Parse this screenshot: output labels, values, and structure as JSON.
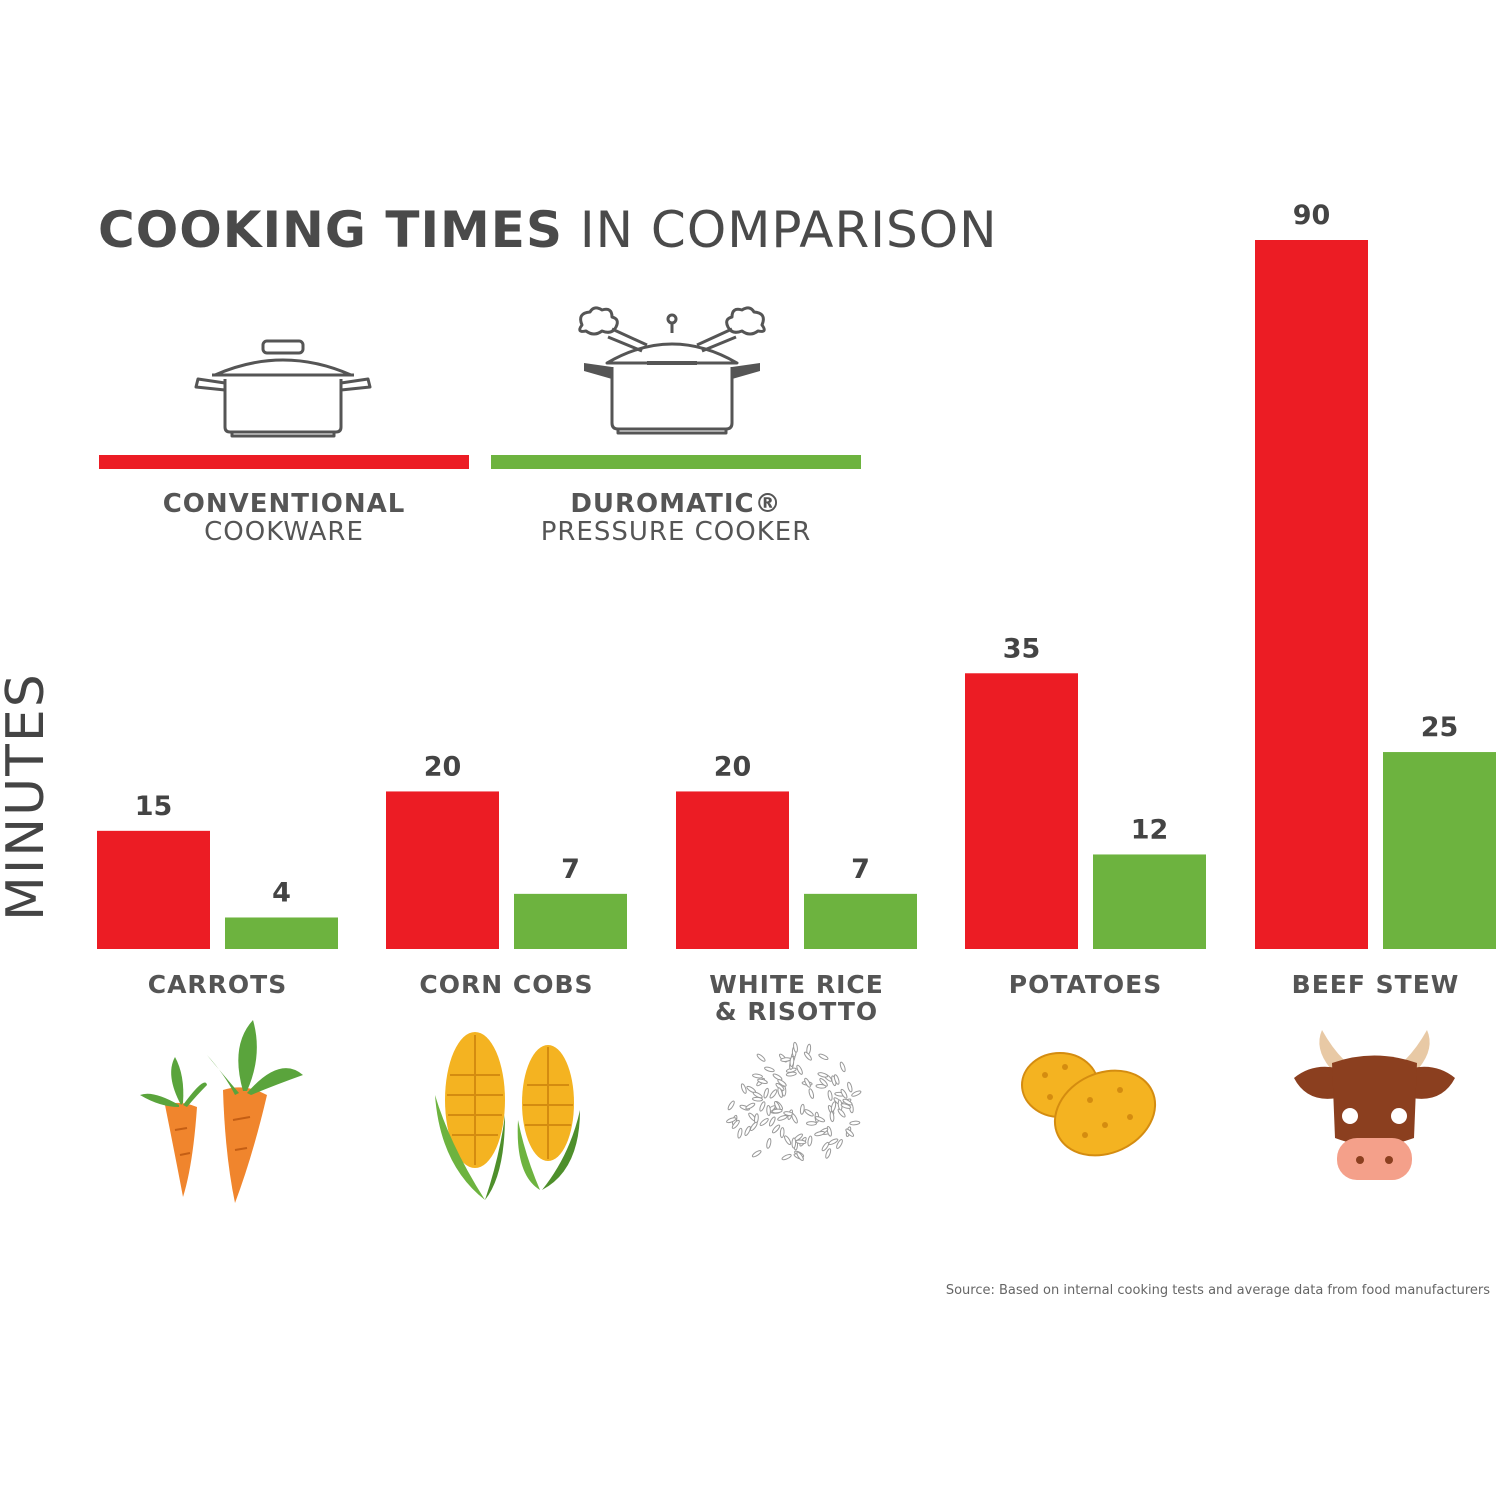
{
  "title": {
    "bold": "COOKING TIMES",
    "light": "IN COMPARISON"
  },
  "legend": [
    {
      "bold": "CONVENTIONAL",
      "light": "COOKWARE",
      "color": "#ec1c24",
      "icon": "pot-icon"
    },
    {
      "bold": "DUROMATIC®",
      "light": "PRESSURE COOKER",
      "color": "#6db33f",
      "icon": "pressure-cooker-icon"
    }
  ],
  "yaxis_label": "MINUTES",
  "source": "Source: Based on internal cooking tests and average data from food manufacturers",
  "chart_data": {
    "type": "bar",
    "title": "COOKING TIMES IN COMPARISON",
    "ylabel": "MINUTES",
    "xlabel": "",
    "ylim": [
      0,
      90
    ],
    "grid": false,
    "categories": [
      {
        "line1": "CARROTS",
        "line2": "",
        "icon": "carrot-icon"
      },
      {
        "line1": "CORN COBS",
        "line2": "",
        "icon": "corn-icon"
      },
      {
        "line1": "WHITE RICE",
        "line2": "& RISOTTO",
        "icon": "rice-icon"
      },
      {
        "line1": "POTATOES",
        "line2": "",
        "icon": "potato-icon"
      },
      {
        "line1": "BEEF STEW",
        "line2": "",
        "icon": "cow-icon"
      }
    ],
    "series": [
      {
        "name": "CONVENTIONAL COOKWARE",
        "color": "#ec1c24",
        "values": [
          15,
          20,
          20,
          35,
          90
        ]
      },
      {
        "name": "DUROMATIC® PRESSURE COOKER",
        "color": "#6db33f",
        "values": [
          4,
          7,
          7,
          12,
          25
        ]
      }
    ]
  }
}
